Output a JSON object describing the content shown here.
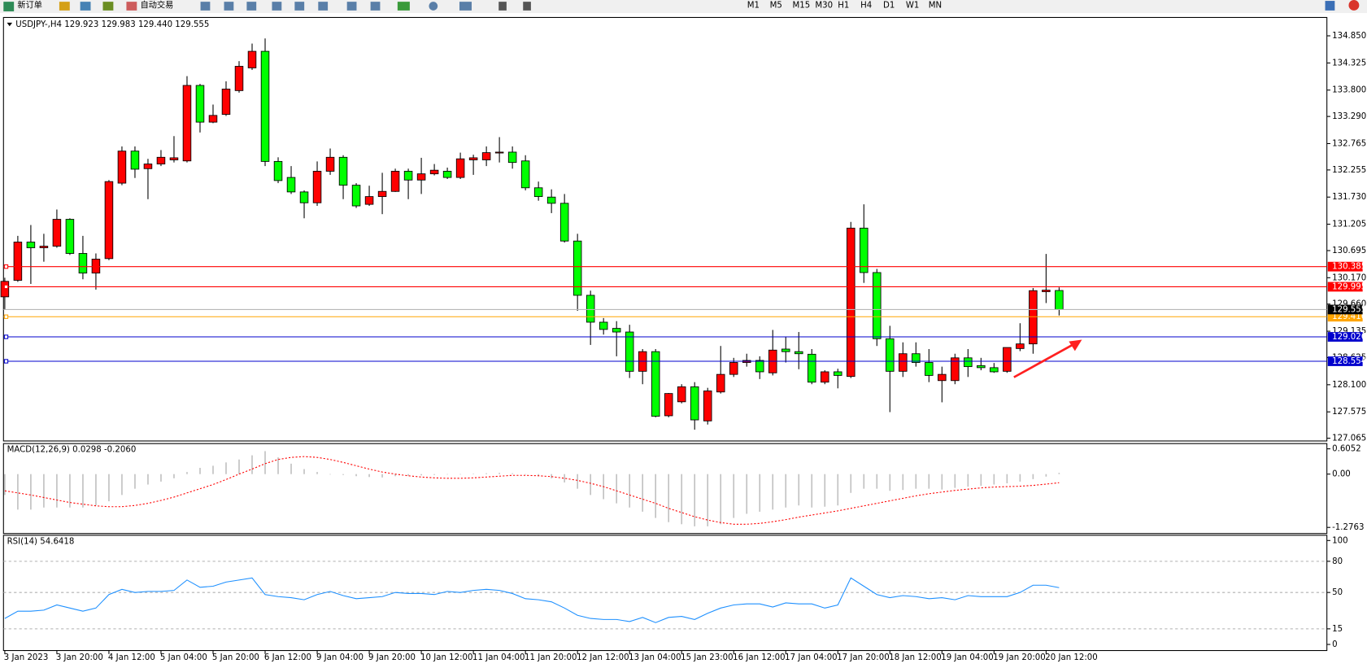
{
  "toolbar": {
    "new_order": "新订单",
    "auto_trading": "自动交易",
    "timeframes": [
      "M1",
      "M5",
      "M15",
      "M30",
      "H1",
      "H4",
      "D1",
      "W1",
      "MN"
    ]
  },
  "chart_data": [
    {
      "type": "candlestick",
      "title": "USDJPY-,H4  129.923 129.983 129.440 129.555",
      "categories": [
        "3 Jan 2023",
        null,
        null,
        null,
        "3 Jan 20:00",
        null,
        null,
        null,
        "4 Jan 12:00",
        null,
        null,
        null,
        "5 Jan 04:00",
        null,
        null,
        null,
        "5 Jan 20:00",
        null,
        null,
        null,
        "6 Jan 12:00",
        null,
        null,
        null,
        "9 Jan 04:00",
        null,
        null,
        null,
        "9 Jan 20:00",
        null,
        null,
        null,
        "10 Jan 12:00",
        null,
        null,
        null,
        "11 Jan 04:00",
        null,
        null,
        null,
        "11 Jan 20:00",
        null,
        null,
        null,
        "12 Jan 12:00",
        null,
        null,
        null,
        "13 Jan 04:00",
        null,
        null,
        null,
        "15 Jan 23:00",
        null,
        null,
        null,
        "16 Jan 12:00",
        null,
        null,
        null,
        "17 Jan 04:00",
        null,
        null,
        null,
        "17 Jan 20:00",
        null,
        null,
        null,
        "18 Jan 12:00",
        null,
        null,
        null,
        "19 Jan 04:00",
        null,
        null,
        null,
        "19 Jan 20:00",
        null,
        null,
        null,
        "20 Jan 12:00",
        null
      ],
      "open": [
        129.8,
        130.12,
        130.86,
        130.75,
        130.78,
        131.3,
        130.64,
        130.26,
        130.54,
        132.0,
        132.62,
        132.28,
        132.37,
        132.45,
        132.43,
        133.89,
        133.18,
        133.33,
        133.79,
        134.23,
        134.55,
        132.42,
        132.11,
        131.83,
        131.62,
        132.23,
        132.5,
        131.96,
        131.59,
        131.74,
        131.84,
        132.23,
        132.06,
        132.18,
        132.23,
        132.11,
        132.45,
        132.45,
        132.59,
        132.6,
        132.43,
        131.91,
        131.73,
        131.61,
        130.88,
        129.83,
        129.31,
        129.19,
        129.12,
        128.36,
        128.74,
        127.5,
        127.77,
        128.06,
        127.4,
        127.96,
        128.3,
        128.53,
        128.57,
        128.33,
        128.79,
        128.74,
        128.69,
        128.15,
        128.35,
        128.26,
        131.13,
        130.27,
        128.99,
        128.36,
        128.7,
        128.53,
        128.18,
        128.18,
        128.62,
        128.47,
        128.43,
        128.36,
        128.8,
        128.89,
        129.9,
        129.923
      ],
      "high": [
        130.17,
        130.98,
        131.19,
        131.02,
        131.49,
        131.32,
        130.98,
        130.64,
        132.06,
        132.71,
        132.71,
        132.47,
        132.64,
        132.91,
        134.07,
        133.92,
        133.52,
        133.97,
        134.36,
        134.7,
        134.8,
        132.5,
        132.33,
        131.86,
        132.42,
        132.67,
        132.54,
        132.0,
        131.95,
        132.2,
        132.28,
        132.28,
        132.49,
        132.37,
        132.3,
        132.59,
        132.55,
        132.71,
        132.89,
        132.71,
        132.54,
        132.03,
        131.88,
        131.79,
        131.02,
        129.92,
        129.39,
        129.33,
        129.26,
        128.79,
        128.79,
        127.94,
        128.11,
        128.15,
        128.04,
        128.85,
        128.62,
        128.7,
        128.65,
        129.16,
        129.02,
        129.12,
        128.79,
        128.38,
        128.41,
        131.25,
        131.59,
        130.34,
        129.24,
        128.92,
        128.92,
        128.79,
        128.45,
        128.7,
        128.79,
        128.62,
        128.52,
        128.82,
        129.29,
        129.97,
        130.63,
        129.983
      ],
      "low": [
        129.55,
        130.09,
        130.05,
        130.48,
        130.75,
        130.61,
        130.14,
        129.94,
        130.51,
        131.96,
        132.1,
        131.69,
        132.33,
        132.4,
        132.4,
        132.98,
        133.16,
        133.3,
        133.75,
        134.19,
        132.33,
        132.0,
        131.79,
        131.32,
        131.56,
        132.16,
        131.69,
        131.52,
        131.56,
        131.4,
        131.83,
        131.69,
        131.79,
        132.15,
        132.08,
        132.08,
        132.16,
        132.33,
        132.4,
        132.28,
        131.86,
        131.66,
        131.42,
        130.85,
        129.53,
        128.87,
        129.07,
        128.65,
        128.23,
        128.11,
        127.47,
        127.47,
        127.74,
        127.23,
        127.33,
        127.93,
        128.25,
        128.45,
        128.21,
        128.28,
        128.53,
        128.4,
        128.11,
        128.11,
        128.03,
        128.23,
        130.07,
        128.85,
        127.57,
        128.25,
        128.45,
        128.15,
        127.76,
        128.11,
        128.25,
        128.38,
        128.33,
        128.33,
        128.75,
        128.7,
        129.68,
        129.44
      ],
      "close": [
        130.1,
        130.86,
        130.75,
        130.78,
        131.3,
        130.64,
        130.26,
        130.53,
        132.03,
        132.62,
        132.27,
        132.37,
        132.5,
        132.49,
        133.89,
        133.18,
        133.31,
        133.82,
        134.26,
        134.55,
        132.42,
        132.05,
        131.83,
        131.62,
        132.23,
        132.5,
        131.96,
        131.56,
        131.74,
        131.84,
        132.23,
        132.06,
        132.18,
        132.25,
        132.11,
        132.47,
        132.49,
        132.59,
        132.6,
        132.4,
        131.91,
        131.74,
        131.61,
        130.88,
        129.83,
        129.31,
        129.17,
        129.12,
        128.36,
        128.74,
        127.49,
        127.93,
        128.06,
        127.42,
        127.98,
        128.3,
        128.53,
        128.57,
        128.35,
        128.77,
        128.74,
        128.7,
        128.15,
        128.35,
        128.28,
        131.13,
        130.27,
        128.99,
        128.36,
        128.7,
        128.53,
        128.28,
        128.3,
        128.62,
        128.45,
        128.43,
        128.35,
        128.82,
        128.89,
        129.92,
        129.93,
        129.555
      ],
      "up_color": "#ff0000",
      "down_color": "#00ff00",
      "ylim": [
        127.012,
        135.205
      ],
      "yticks": [
        {
          "value": 134.85,
          "label": "134.850"
        },
        134.325,
        {
          "value": 133.8,
          "label": "133.800"
        },
        {
          "value": 133.29,
          "label": "133.290"
        },
        132.765,
        132.255,
        {
          "value": 131.73,
          "label": "131.730"
        },
        131.205,
        130.695,
        {
          "value": 130.17,
          "label": "130.170"
        },
        {
          "value": 129.66,
          "label": "129.660"
        },
        129.135,
        128.625,
        {
          "value": 128.1,
          "label": "128.100"
        },
        127.575,
        127.065
      ],
      "levels": [
        {
          "value": 130.385,
          "color": "#ff0000"
        },
        {
          "value": 129.995,
          "color": "#ff0000"
        },
        {
          "value": 129.416,
          "color": "#ffa500"
        },
        {
          "value": 129.026,
          "color": "#0000cd"
        },
        {
          "value": 128.554,
          "color": "#0000cd"
        },
        {
          "value": 129.555,
          "color": "#000000"
        }
      ]
    },
    {
      "type": "macd",
      "title": "MACD(12,26,9) 0.0298 -0.2060",
      "values": [
        -0.5,
        -0.85,
        -0.85,
        -0.8,
        -0.8,
        -0.8,
        -0.8,
        -0.75,
        -0.65,
        -0.5,
        -0.35,
        -0.25,
        -0.18,
        -0.1,
        0.05,
        0.15,
        0.2,
        0.28,
        0.35,
        0.45,
        0.55,
        0.4,
        0.25,
        0.12,
        0.05,
        0.0,
        -0.02,
        -0.05,
        -0.07,
        -0.08,
        -0.05,
        -0.04,
        -0.03,
        -0.02,
        -0.01,
        0.0,
        0.01,
        0.02,
        0.03,
        0.02,
        -0.01,
        -0.05,
        -0.1,
        -0.2,
        -0.35,
        -0.5,
        -0.6,
        -0.7,
        -0.8,
        -0.9,
        -1.05,
        -1.15,
        -1.2,
        -1.25,
        -1.25,
        -1.2,
        -1.05,
        -0.95,
        -0.9,
        -0.85,
        -0.8,
        -0.75,
        -0.8,
        -0.78,
        -0.75,
        -0.45,
        -0.35,
        -0.35,
        -0.4,
        -0.38,
        -0.35,
        -0.35,
        -0.37,
        -0.33,
        -0.3,
        -0.28,
        -0.25,
        -0.22,
        -0.18,
        -0.12,
        -0.06,
        0.0298
      ],
      "signal": [
        -0.4,
        -0.45,
        -0.5,
        -0.56,
        -0.62,
        -0.68,
        -0.72,
        -0.76,
        -0.78,
        -0.78,
        -0.75,
        -0.7,
        -0.63,
        -0.55,
        -0.45,
        -0.35,
        -0.25,
        -0.13,
        0.0,
        0.12,
        0.25,
        0.35,
        0.4,
        0.42,
        0.4,
        0.35,
        0.28,
        0.2,
        0.12,
        0.05,
        0.0,
        -0.04,
        -0.07,
        -0.09,
        -0.1,
        -0.1,
        -0.09,
        -0.07,
        -0.05,
        -0.03,
        -0.03,
        -0.04,
        -0.06,
        -0.1,
        -0.15,
        -0.22,
        -0.3,
        -0.4,
        -0.5,
        -0.6,
        -0.7,
        -0.82,
        -0.92,
        -1.02,
        -1.1,
        -1.16,
        -1.2,
        -1.2,
        -1.18,
        -1.14,
        -1.09,
        -1.03,
        -0.98,
        -0.93,
        -0.88,
        -0.82,
        -0.76,
        -0.7,
        -0.64,
        -0.58,
        -0.52,
        -0.47,
        -0.43,
        -0.39,
        -0.36,
        -0.33,
        -0.31,
        -0.3,
        -0.29,
        -0.27,
        -0.24,
        -0.206
      ],
      "histogram_color": "#c0c0c0",
      "signal_color": "#ff0000",
      "ylim": [
        -1.2763,
        0.6052
      ],
      "yticks": [
        0.6052,
        {
          "value": 0,
          "label": "0.00"
        },
        -1.2763
      ]
    },
    {
      "type": "line",
      "title": "RSI(14) 54.6418",
      "values": [
        25,
        32,
        32,
        33,
        38,
        35,
        32,
        35,
        48,
        53,
        50,
        51,
        51,
        52,
        62,
        55,
        56,
        60,
        62,
        64,
        48,
        46,
        45,
        43,
        48,
        51,
        47,
        44,
        45,
        46,
        50,
        49,
        49,
        48,
        51,
        50,
        52,
        53,
        52,
        49,
        44,
        43,
        41,
        35,
        28,
        25,
        24,
        24,
        22,
        26,
        21,
        26,
        27,
        24,
        30,
        35,
        38,
        39,
        39,
        36,
        40,
        39,
        39,
        35,
        38,
        64,
        56,
        48,
        45,
        47,
        46,
        44,
        45,
        43,
        47,
        46,
        46,
        46,
        50,
        57,
        57,
        54.6418
      ],
      "color": "#1e90ff",
      "ylim": [
        0,
        100
      ],
      "yticks": [
        100,
        80,
        50,
        15,
        0
      ],
      "grid": true
    }
  ]
}
